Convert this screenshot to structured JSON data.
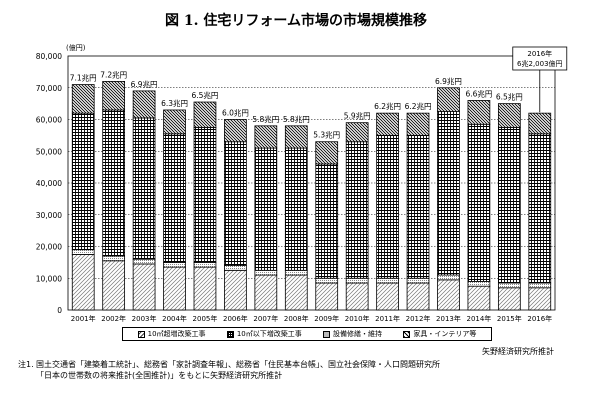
{
  "title": "図 1. 住宅リフォーム市場の市場規模推移",
  "legend": {
    "items": [
      "10㎡超増改築工事",
      "10㎡以下増改築工事",
      "設備修繕・維持",
      "家具・インテリア等"
    ]
  },
  "source": "矢野経済研究所推計",
  "note": {
    "label": "注1.",
    "line1": "国土交通省「建築着工統計」、総務省「家計調査年報」、総務省「住民基本台帳」、国立社会保障・人口問題研究所",
    "line2": "「日本の世帯数の将来推計(全国推計)」をもとに矢野経済研究所推計"
  },
  "chart_data": {
    "type": "bar",
    "stacked": true,
    "ylabel": "(億円)",
    "ylim": [
      0,
      80000
    ],
    "yticks": [
      "0",
      "10,000",
      "20,000",
      "30,000",
      "40,000",
      "50,000",
      "60,000",
      "70,000",
      "80,000"
    ],
    "grid": true,
    "legend_position": "bottom",
    "categories": [
      "2001年",
      "2002年",
      "2003年",
      "2004年",
      "2005年",
      "2006年",
      "2007年",
      "2008年",
      "2009年",
      "2010年",
      "2011年",
      "2012年",
      "2013年",
      "2014年",
      "2015年",
      "2016年"
    ],
    "totals_labels": [
      "7.1兆円",
      "7.2兆円",
      "6.9兆円",
      "6.3兆円",
      "6.5兆円",
      "6.0兆円",
      "5.8兆円",
      "5.8兆円",
      "5.3兆円",
      "5.9兆円",
      "6.2兆円",
      "6.2兆円",
      "6.9兆円",
      "6.6兆円",
      "6.5兆円",
      ""
    ],
    "callout": {
      "category": "2016年",
      "line1": "2016年",
      "line2": "6兆2,003億円"
    },
    "series": [
      {
        "name": "10㎡超増改築工事",
        "values": [
          17500,
          15500,
          14500,
          13500,
          13500,
          12500,
          11000,
          11000,
          8500,
          8500,
          8500,
          8500,
          9500,
          7500,
          7000,
          7000
        ]
      },
      {
        "name": "10㎡以下増改築工事",
        "values": [
          1500,
          1500,
          1500,
          1500,
          1500,
          1500,
          1500,
          1500,
          1500,
          1500,
          1500,
          1500,
          1500,
          1500,
          1500,
          1500
        ]
      },
      {
        "name": "設備修繕・維持",
        "values": [
          43000,
          46000,
          44500,
          40500,
          42500,
          39000,
          38500,
          38500,
          36000,
          43000,
          45000,
          45000,
          51500,
          49500,
          49000,
          47000
        ]
      },
      {
        "name": "家具・インテリア等",
        "values": [
          9000,
          9000,
          8500,
          7500,
          8000,
          7000,
          7000,
          7000,
          7000,
          6000,
          7000,
          7000,
          7500,
          7500,
          7500,
          6500
        ]
      }
    ]
  }
}
